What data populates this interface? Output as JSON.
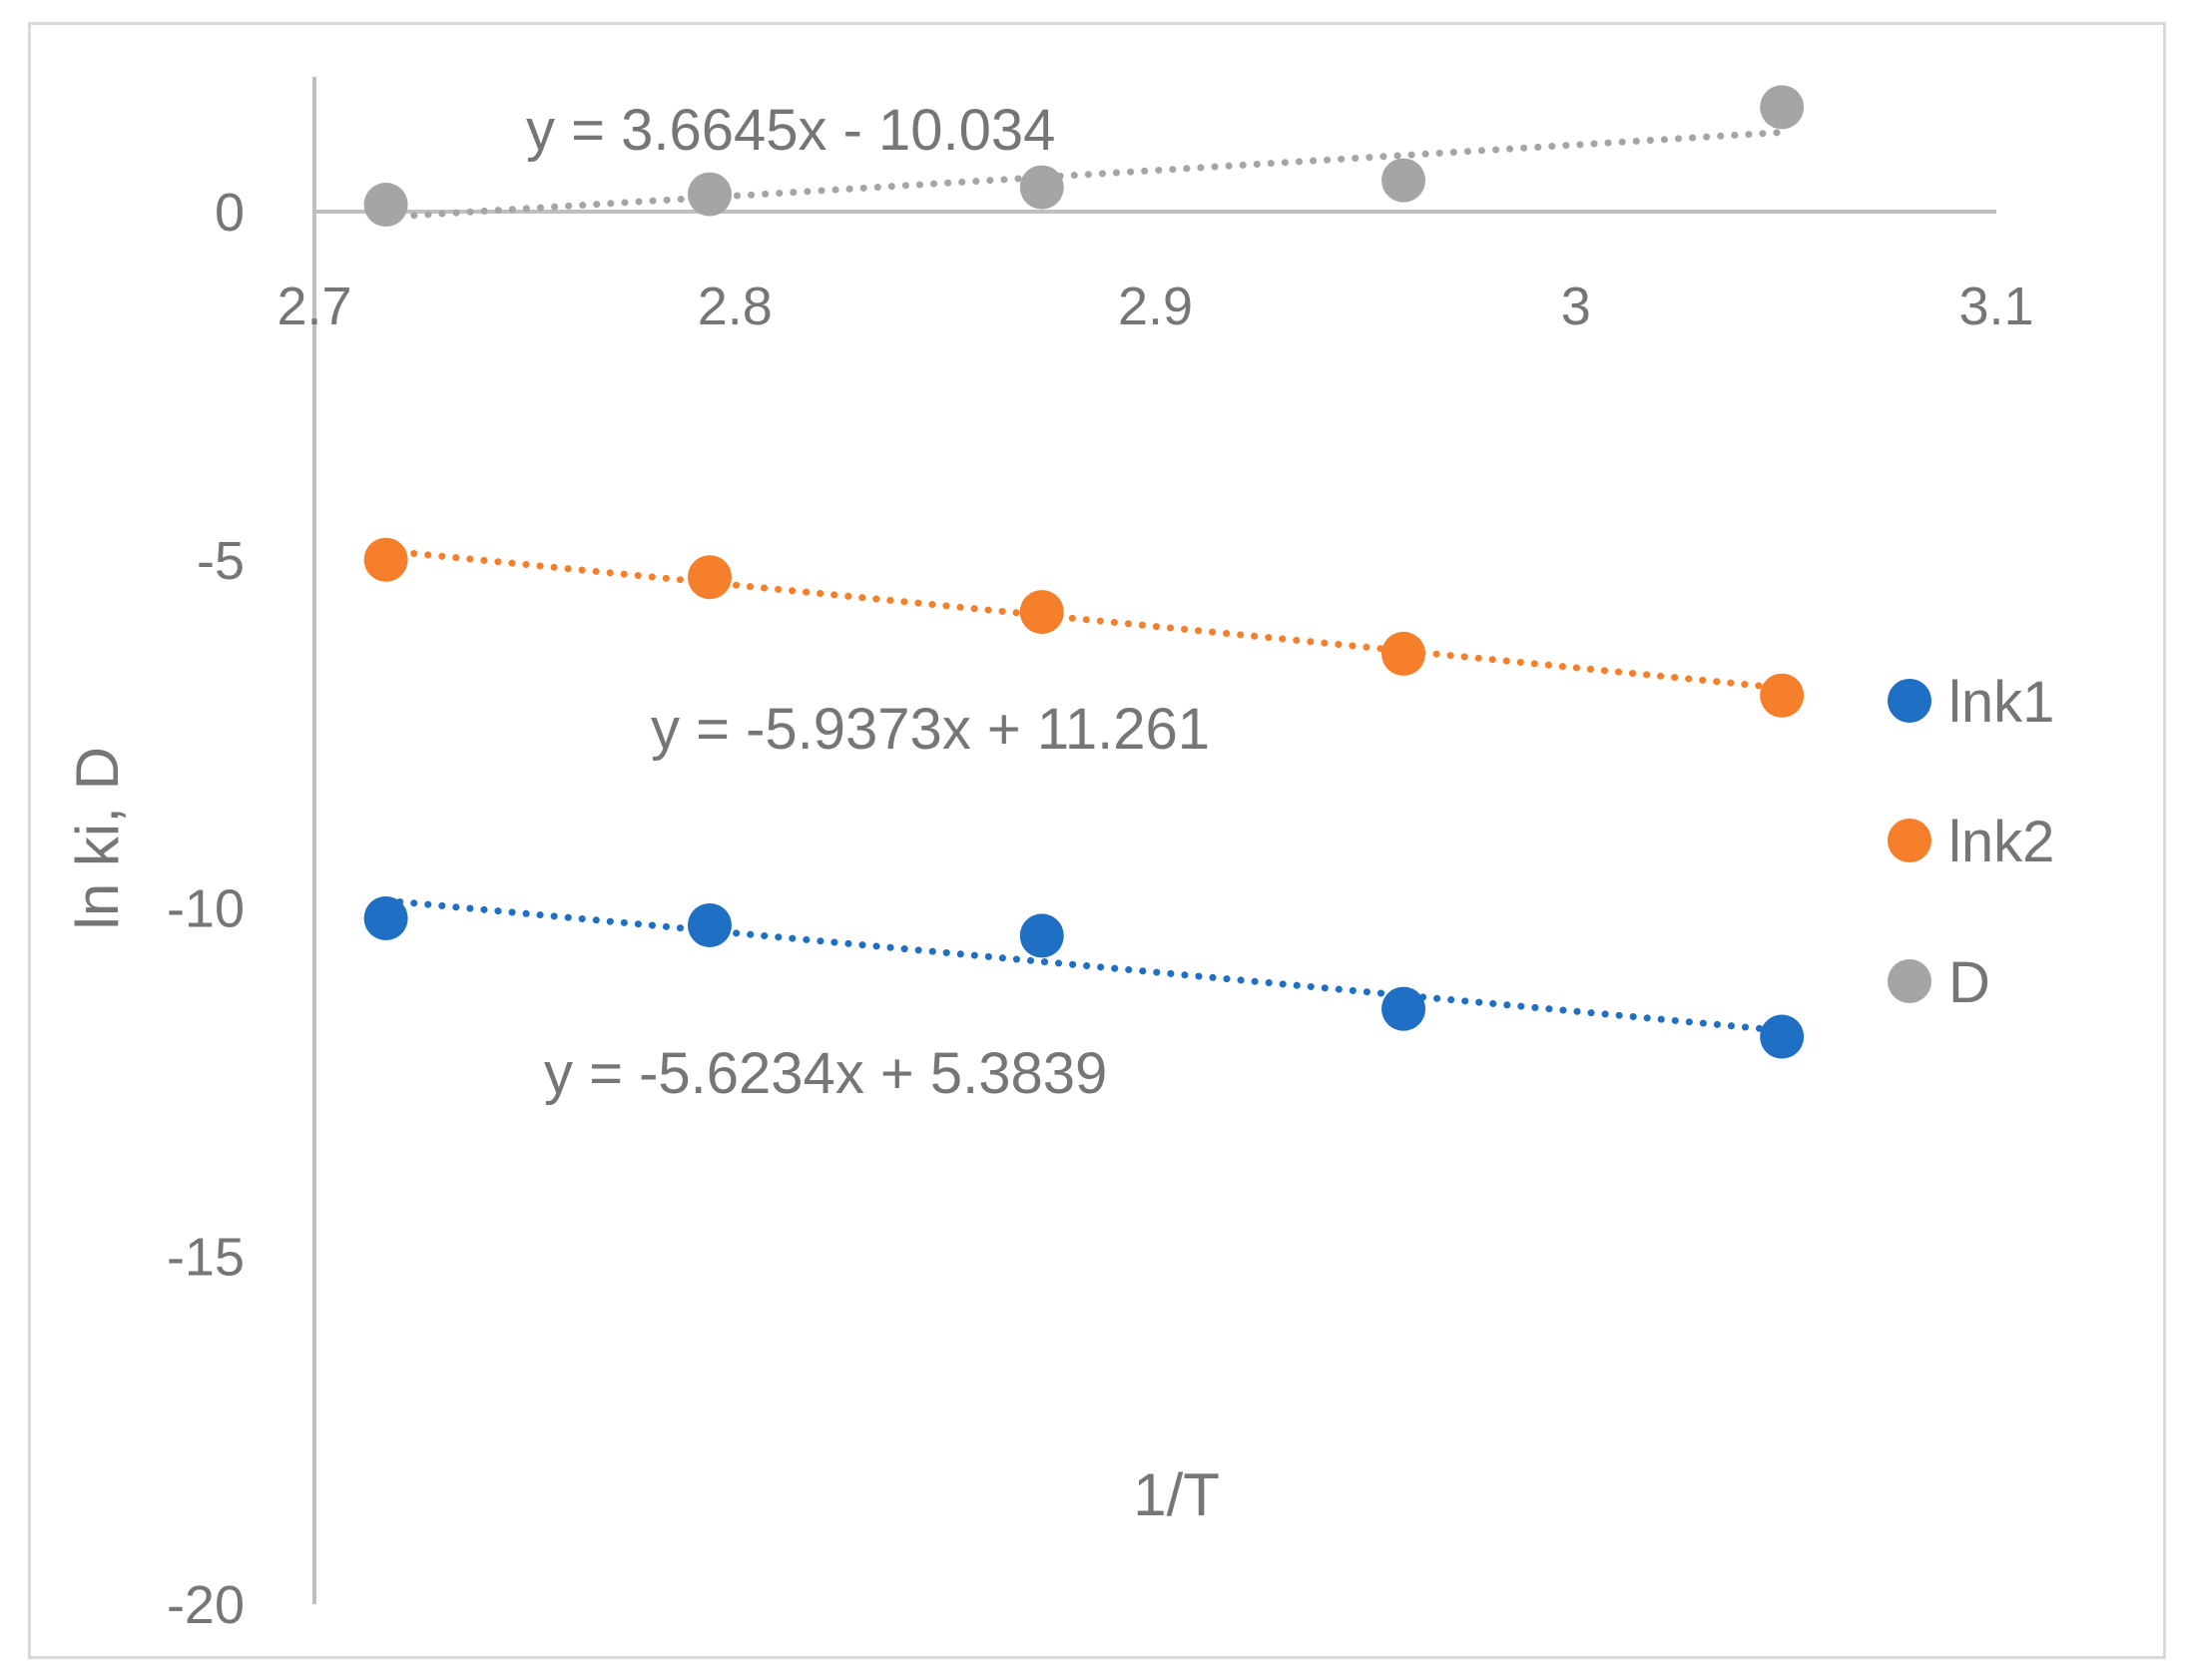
{
  "chart_data": {
    "type": "scatter",
    "xlabel": "1/T",
    "ylabel": "ln ki, D",
    "xlim": [
      2.7,
      3.1
    ],
    "ylim": [
      -20,
      0
    ],
    "x_ticks": [
      "2.7",
      "2.8",
      "2.9",
      "3",
      "3.1"
    ],
    "y_ticks": [
      "0",
      "-5",
      "-10",
      "-15",
      "-20"
    ],
    "legend_position": "right",
    "grid": false,
    "series": [
      {
        "name": "lnk1",
        "color": "#1f6fc5",
        "x": [
          2.717,
          2.794,
          2.873,
          2.959,
          3.049
        ],
        "y": [
          -10.15,
          -10.25,
          -10.4,
          -11.45,
          -11.85
        ],
        "trendline": {
          "slope": -5.6234,
          "intercept": 5.3839,
          "label": "y = -5.6234x + 5.3839"
        }
      },
      {
        "name": "lnk2",
        "color": "#f57f2a",
        "x": [
          2.717,
          2.794,
          2.873,
          2.959,
          3.049
        ],
        "y": [
          -5.0,
          -5.25,
          -5.75,
          -6.35,
          -6.95
        ],
        "trendline": {
          "slope": -5.9373,
          "intercept": 11.261,
          "label": "y = -5.9373x + 11.261"
        }
      },
      {
        "name": "D",
        "color": "#a5a5a5",
        "x": [
          2.717,
          2.794,
          2.873,
          2.959,
          3.049
        ],
        "y": [
          0.1,
          0.25,
          0.35,
          0.45,
          1.5
        ],
        "trendline": {
          "slope": 3.6645,
          "intercept": -10.034,
          "label": "y = 3.6645x - 10.034"
        }
      }
    ]
  }
}
